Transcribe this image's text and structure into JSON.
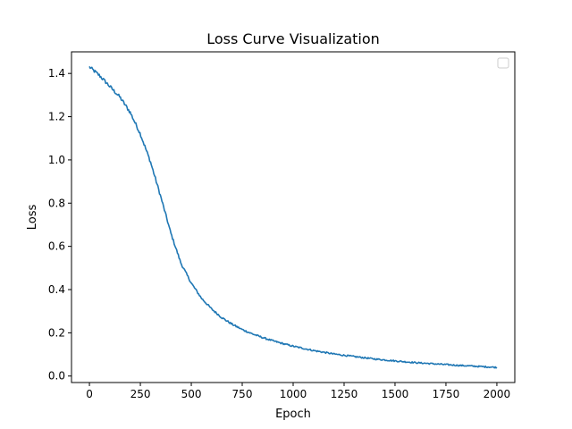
{
  "chart_data": {
    "type": "line",
    "title": "Loss Curve Visualization",
    "xlabel": "Epoch",
    "ylabel": "Loss",
    "xlim": [
      -88,
      2088
    ],
    "ylim": [
      -0.03,
      1.5
    ],
    "xticks": [
      0,
      250,
      500,
      750,
      1000,
      1250,
      1500,
      1750,
      2000
    ],
    "yticks": [
      0.0,
      0.2,
      0.4,
      0.6,
      0.8,
      1.0,
      1.2,
      1.4
    ],
    "ytick_labels": [
      "0.0",
      "0.2",
      "0.4",
      "0.6",
      "0.8",
      "1.0",
      "1.2",
      "1.4"
    ],
    "grid": false,
    "legend": {
      "placement": "top-right",
      "entries": []
    },
    "series": [
      {
        "name": "loss",
        "color": "#1f77b4",
        "x": [
          0,
          50,
          100,
          150,
          200,
          250,
          300,
          350,
          400,
          450,
          500,
          550,
          600,
          650,
          700,
          750,
          800,
          850,
          900,
          950,
          1000,
          1100,
          1200,
          1300,
          1400,
          1500,
          1600,
          1700,
          1800,
          1900,
          2000
        ],
        "y": [
          1.43,
          1.39,
          1.34,
          1.29,
          1.22,
          1.12,
          0.99,
          0.83,
          0.66,
          0.52,
          0.43,
          0.36,
          0.31,
          0.27,
          0.24,
          0.215,
          0.195,
          0.178,
          0.163,
          0.15,
          0.138,
          0.118,
          0.102,
          0.09,
          0.079,
          0.07,
          0.062,
          0.056,
          0.05,
          0.045,
          0.04
        ]
      }
    ]
  }
}
